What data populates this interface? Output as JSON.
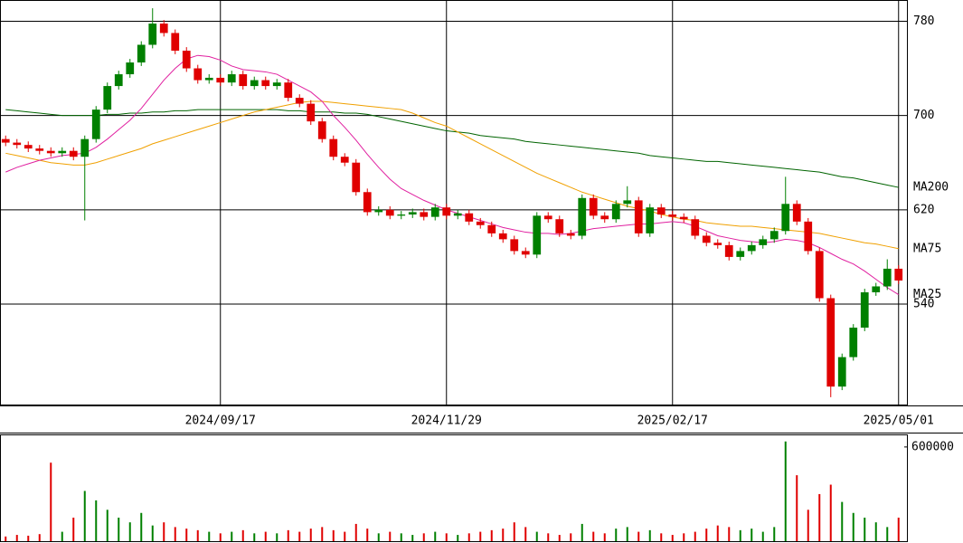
{
  "chart_data": [
    {
      "type": "candlestick",
      "categories": [
        null,
        null,
        null,
        null,
        null,
        null,
        null,
        null,
        null,
        null,
        null,
        null,
        null,
        null,
        null,
        null,
        null,
        null,
        null,
        "2024/09/17",
        null,
        null,
        null,
        null,
        null,
        null,
        null,
        null,
        null,
        null,
        null,
        null,
        null,
        null,
        null,
        null,
        null,
        null,
        null,
        "2024/11/29",
        null,
        null,
        null,
        null,
        null,
        null,
        null,
        null,
        null,
        null,
        null,
        null,
        null,
        null,
        null,
        null,
        null,
        null,
        null,
        "2025/02/17",
        null,
        null,
        null,
        null,
        null,
        null,
        null,
        null,
        null,
        null,
        null,
        null,
        null,
        null,
        null,
        null,
        null,
        null,
        null,
        "2025/05/01"
      ],
      "open": [
        680,
        677,
        675,
        672,
        670,
        668,
        670,
        665,
        680,
        705,
        725,
        735,
        745,
        760,
        778,
        770,
        755,
        740,
        730,
        732,
        728,
        735,
        725,
        730,
        725,
        728,
        715,
        710,
        695,
        680,
        665,
        660,
        635,
        618,
        620,
        615,
        616,
        618,
        614,
        622,
        615,
        617,
        610,
        607,
        600,
        595,
        585,
        582,
        615,
        612,
        600,
        598,
        630,
        615,
        612,
        625,
        628,
        600,
        622,
        616,
        614,
        612,
        598,
        592,
        590,
        580,
        585,
        590,
        595,
        602,
        625,
        610,
        585,
        545,
        470,
        495,
        520,
        550,
        555,
        570
      ],
      "high": [
        683,
        680,
        678,
        675,
        673,
        673,
        673,
        683,
        708,
        728,
        738,
        748,
        763,
        791,
        781,
        773,
        758,
        743,
        735,
        735,
        738,
        738,
        733,
        733,
        731,
        731,
        718,
        713,
        698,
        683,
        668,
        663,
        638,
        623,
        623,
        619,
        621,
        621,
        625,
        625,
        620,
        620,
        613,
        610,
        603,
        598,
        588,
        618,
        618,
        615,
        603,
        633,
        633,
        618,
        628,
        640,
        631,
        625,
        625,
        619,
        617,
        615,
        601,
        595,
        593,
        588,
        593,
        598,
        605,
        648,
        628,
        613,
        588,
        548,
        498,
        523,
        553,
        558,
        578,
        573
      ],
      "low": [
        674,
        672,
        669,
        667,
        665,
        665,
        662,
        611,
        677,
        702,
        722,
        732,
        742,
        757,
        767,
        752,
        737,
        727,
        727,
        725,
        725,
        722,
        722,
        722,
        722,
        712,
        707,
        692,
        677,
        662,
        657,
        632,
        615,
        615,
        612,
        612,
        613,
        611,
        611,
        612,
        612,
        607,
        604,
        597,
        592,
        582,
        579,
        579,
        609,
        597,
        595,
        595,
        612,
        609,
        609,
        622,
        597,
        597,
        613,
        611,
        609,
        595,
        589,
        587,
        577,
        577,
        582,
        587,
        592,
        599,
        607,
        582,
        542,
        461,
        467,
        492,
        517,
        547,
        552,
        557
      ],
      "close": [
        677,
        675,
        672,
        670,
        668,
        670,
        665,
        680,
        705,
        725,
        735,
        745,
        760,
        778,
        770,
        755,
        740,
        730,
        732,
        728,
        735,
        725,
        730,
        725,
        728,
        715,
        710,
        695,
        680,
        665,
        660,
        635,
        618,
        620,
        615,
        616,
        618,
        614,
        622,
        615,
        617,
        610,
        607,
        600,
        595,
        585,
        582,
        615,
        612,
        600,
        598,
        630,
        615,
        612,
        625,
        628,
        600,
        622,
        616,
        614,
        612,
        598,
        592,
        590,
        580,
        585,
        590,
        595,
        602,
        625,
        610,
        585,
        545,
        470,
        495,
        520,
        550,
        555,
        570,
        560
      ],
      "up_color": "#008000",
      "down_color": "#e00000",
      "ylim": [
        454,
        798
      ],
      "yticks": [
        540,
        620,
        700,
        780
      ],
      "grid": true,
      "series": [
        {
          "name": "MA200",
          "color": "#006400",
          "values": [
            705,
            704,
            703,
            702,
            701,
            700,
            700,
            700,
            700,
            701,
            701,
            702,
            702,
            703,
            703,
            704,
            704,
            705,
            705,
            705,
            705,
            705,
            705,
            705,
            705,
            704,
            704,
            703,
            703,
            703,
            702,
            702,
            701,
            699,
            697,
            695,
            693,
            691,
            689,
            687,
            686,
            685,
            683,
            682,
            681,
            680,
            678,
            677,
            676,
            675,
            674,
            673,
            672,
            671,
            670,
            669,
            668,
            666,
            665,
            664,
            663,
            662,
            661,
            661,
            660,
            659,
            658,
            657,
            656,
            655,
            654,
            653,
            652,
            650,
            648,
            647,
            645,
            643,
            641,
            639
          ]
        },
        {
          "name": "MA75",
          "color": "#f0a000",
          "values": [
            668,
            666,
            664,
            662,
            660,
            659,
            658,
            658,
            660,
            663,
            666,
            669,
            672,
            676,
            679,
            682,
            685,
            688,
            691,
            694,
            697,
            700,
            703,
            705,
            707,
            709,
            711,
            712,
            712,
            711,
            710,
            709,
            708,
            707,
            706,
            705,
            702,
            698,
            694,
            691,
            686,
            681,
            676,
            671,
            666,
            661,
            656,
            651,
            647,
            643,
            639,
            635,
            632,
            629,
            626,
            623,
            621,
            619,
            616,
            614,
            612,
            611,
            609,
            608,
            607,
            606,
            606,
            605,
            604,
            603,
            602,
            601,
            600,
            598,
            596,
            594,
            592,
            591,
            589,
            587
          ]
        },
        {
          "name": "MA25",
          "color": "#e020a0",
          "values": [
            652,
            656,
            659,
            662,
            664,
            666,
            667,
            668,
            673,
            680,
            688,
            696,
            706,
            718,
            730,
            740,
            748,
            751,
            750,
            747,
            742,
            739,
            738,
            737,
            735,
            730,
            725,
            720,
            712,
            700,
            690,
            679,
            667,
            656,
            646,
            638,
            633,
            628,
            624,
            620,
            617,
            614,
            611,
            608,
            605,
            603,
            601,
            600,
            600,
            599,
            600,
            602,
            604,
            605,
            606,
            607,
            608,
            608,
            609,
            610,
            609,
            606,
            602,
            598,
            596,
            594,
            593,
            592,
            593,
            595,
            594,
            592,
            588,
            583,
            578,
            574,
            568,
            561,
            554,
            548
          ]
        }
      ]
    },
    {
      "type": "volume",
      "values": [
        30000,
        40000,
        35000,
        45000,
        500000,
        60000,
        150000,
        320000,
        260000,
        200000,
        150000,
        120000,
        180000,
        100000,
        120000,
        90000,
        80000,
        70000,
        60000,
        50000,
        60000,
        70000,
        50000,
        60000,
        50000,
        70000,
        60000,
        80000,
        90000,
        70000,
        60000,
        110000,
        80000,
        50000,
        60000,
        50000,
        40000,
        50000,
        60000,
        50000,
        40000,
        50000,
        60000,
        70000,
        80000,
        120000,
        90000,
        60000,
        50000,
        40000,
        50000,
        110000,
        60000,
        50000,
        80000,
        90000,
        60000,
        70000,
        50000,
        40000,
        50000,
        60000,
        80000,
        100000,
        90000,
        70000,
        80000,
        60000,
        90000,
        635000,
        420000,
        200000,
        300000,
        360000,
        250000,
        180000,
        150000,
        120000,
        90000,
        150000
      ],
      "ylim": [
        0,
        680000
      ],
      "yticks": [
        600000
      ]
    }
  ]
}
